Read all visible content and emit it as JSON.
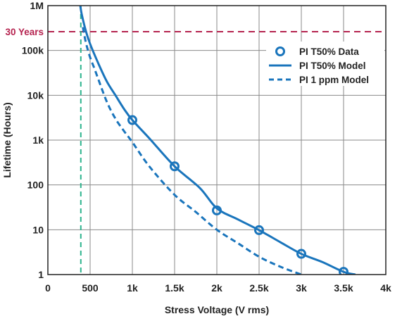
{
  "chart_data": {
    "type": "scatter",
    "title": "",
    "xlabel": "Stress Voltage (V rms)",
    "ylabel": "Lifetime (Hours)",
    "xlim": [
      0,
      4000
    ],
    "ylim": [
      1,
      1000000
    ],
    "yscale": "log",
    "grid": true,
    "legend_position": "top-right",
    "x_ticks": [
      {
        "value": 0,
        "label": "0"
      },
      {
        "value": 500,
        "label": "500"
      },
      {
        "value": 1000,
        "label": "1k"
      },
      {
        "value": 1500,
        "label": "1.5k"
      },
      {
        "value": 2000,
        "label": "2k"
      },
      {
        "value": 2500,
        "label": "2.5k"
      },
      {
        "value": 3000,
        "label": "3k"
      },
      {
        "value": 3500,
        "label": "3.5k"
      },
      {
        "value": 4000,
        "label": "4k"
      }
    ],
    "y_ticks": [
      {
        "value": 1,
        "label": "1"
      },
      {
        "value": 10,
        "label": "10"
      },
      {
        "value": 100,
        "label": "100"
      },
      {
        "value": 1000,
        "label": "1k"
      },
      {
        "value": 10000,
        "label": "10k"
      },
      {
        "value": 100000,
        "label": "100k"
      },
      {
        "value": 1000000,
        "label": "1M"
      }
    ],
    "series": [
      {
        "name": "PI T50% Data",
        "style": "markers",
        "color": "#1a75bc",
        "x": [
          1000,
          1500,
          2000,
          2500,
          3000,
          3500
        ],
        "y": [
          2800,
          260,
          27,
          9.8,
          2.9,
          1.15
        ]
      },
      {
        "name": "PI T50% Model",
        "style": "solid",
        "color": "#1a75bc",
        "x": [
          384,
          400,
          450,
          500,
          600,
          700,
          800,
          900,
          1000,
          1200,
          1500,
          1800,
          2000,
          2250,
          2500,
          2750,
          3000,
          3250,
          3500,
          3640
        ],
        "y": [
          1000000,
          650000,
          270000,
          140000,
          50000,
          20000,
          10000,
          5000,
          2800,
          1100,
          260,
          85,
          30,
          17,
          9.8,
          5.3,
          2.9,
          1.9,
          1.15,
          1.0
        ]
      },
      {
        "name": "PI 1 ppm Model",
        "style": "dashed",
        "color": "#1a75bc",
        "x": [
          414,
          450,
          500,
          550,
          600,
          700,
          800,
          900,
          1000,
          1200,
          1500,
          1750,
          2000,
          2250,
          2500,
          2750,
          3000
        ],
        "y": [
          330000,
          150000,
          70000,
          40000,
          22000,
          7000,
          3000,
          1600,
          900,
          260,
          60,
          25,
          10,
          5,
          2.5,
          1.5,
          1.0
        ]
      }
    ],
    "reference_lines": [
      {
        "orientation": "horizontal",
        "value": 262800,
        "label": "30 Years",
        "color": "#b5234f",
        "style": "dashed"
      },
      {
        "orientation": "vertical",
        "value": 390,
        "color": "#2db38d",
        "style": "dashed"
      }
    ]
  }
}
